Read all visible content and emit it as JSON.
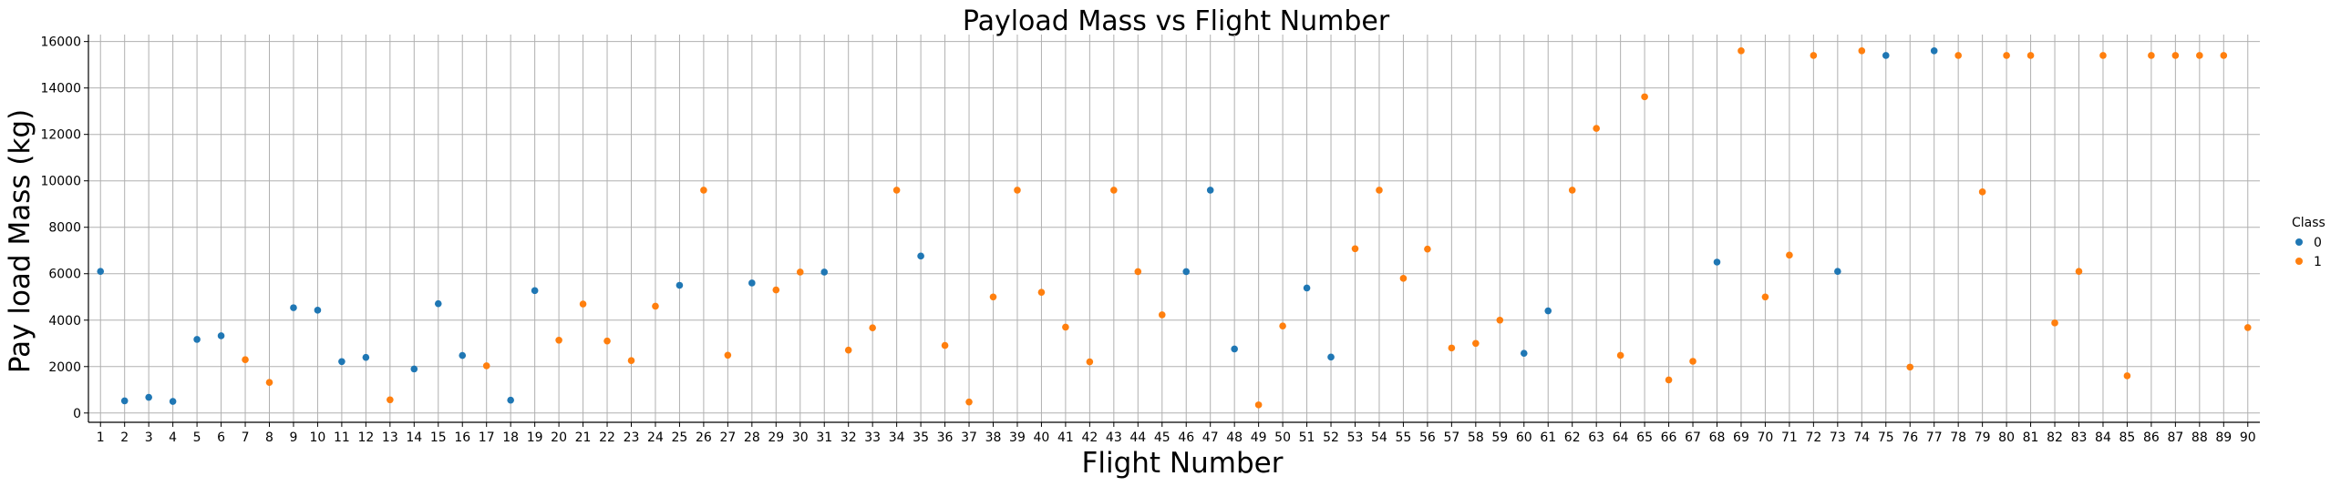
{
  "chart_data": {
    "type": "scatter",
    "title": "Payload Mass vs Flight Number",
    "xlabel": "Flight Number",
    "ylabel": "Pay load Mass (kg)",
    "x_categories": [
      1,
      2,
      3,
      4,
      5,
      6,
      7,
      8,
      9,
      10,
      11,
      12,
      13,
      14,
      15,
      16,
      17,
      18,
      19,
      20,
      21,
      22,
      23,
      24,
      25,
      26,
      27,
      28,
      29,
      30,
      31,
      32,
      33,
      34,
      35,
      36,
      37,
      38,
      39,
      40,
      41,
      42,
      43,
      44,
      45,
      46,
      47,
      48,
      49,
      50,
      51,
      52,
      53,
      54,
      55,
      56,
      57,
      58,
      59,
      60,
      61,
      62,
      63,
      64,
      65,
      66,
      67,
      68,
      69,
      70,
      71,
      72,
      73,
      74,
      75,
      76,
      77,
      78,
      79,
      80,
      81,
      82,
      83,
      84,
      85,
      86,
      87,
      88,
      89,
      90
    ],
    "ylim": [
      -400,
      16300
    ],
    "yticks": [
      0,
      2000,
      4000,
      6000,
      8000,
      10000,
      12000,
      14000,
      16000
    ],
    "grid": true,
    "legend": {
      "title": "Class",
      "placement": "right",
      "entries": [
        "0",
        "1"
      ]
    },
    "colors": {
      "class_0": "#1f77b4",
      "class_1": "#ff7f0e"
    },
    "points": [
      {
        "x": 1,
        "y": 6100,
        "class": 0
      },
      {
        "x": 2,
        "y": 525,
        "class": 0
      },
      {
        "x": 3,
        "y": 677,
        "class": 0
      },
      {
        "x": 4,
        "y": 500,
        "class": 0
      },
      {
        "x": 5,
        "y": 3170,
        "class": 0
      },
      {
        "x": 6,
        "y": 3325,
        "class": 0
      },
      {
        "x": 7,
        "y": 2296,
        "class": 1
      },
      {
        "x": 8,
        "y": 1316,
        "class": 1
      },
      {
        "x": 9,
        "y": 4535,
        "class": 0
      },
      {
        "x": 10,
        "y": 4428,
        "class": 0
      },
      {
        "x": 11,
        "y": 2216,
        "class": 0
      },
      {
        "x": 12,
        "y": 2395,
        "class": 0
      },
      {
        "x": 13,
        "y": 570,
        "class": 1
      },
      {
        "x": 14,
        "y": 1898,
        "class": 0
      },
      {
        "x": 15,
        "y": 4707,
        "class": 0
      },
      {
        "x": 16,
        "y": 2477,
        "class": 0
      },
      {
        "x": 17,
        "y": 2034,
        "class": 1
      },
      {
        "x": 18,
        "y": 553,
        "class": 0
      },
      {
        "x": 19,
        "y": 5271,
        "class": 0
      },
      {
        "x": 20,
        "y": 3136,
        "class": 1
      },
      {
        "x": 21,
        "y": 4696,
        "class": 1
      },
      {
        "x": 22,
        "y": 3100,
        "class": 1
      },
      {
        "x": 23,
        "y": 2257,
        "class": 1
      },
      {
        "x": 24,
        "y": 4600,
        "class": 1
      },
      {
        "x": 25,
        "y": 5500,
        "class": 0
      },
      {
        "x": 26,
        "y": 9600,
        "class": 1
      },
      {
        "x": 27,
        "y": 2490,
        "class": 1
      },
      {
        "x": 28,
        "y": 5600,
        "class": 0
      },
      {
        "x": 29,
        "y": 5300,
        "class": 1
      },
      {
        "x": 30,
        "y": 6070,
        "class": 1
      },
      {
        "x": 31,
        "y": 6070,
        "class": 0
      },
      {
        "x": 32,
        "y": 2708,
        "class": 1
      },
      {
        "x": 33,
        "y": 3669,
        "class": 1
      },
      {
        "x": 34,
        "y": 9600,
        "class": 1
      },
      {
        "x": 35,
        "y": 6761,
        "class": 0
      },
      {
        "x": 36,
        "y": 2910,
        "class": 1
      },
      {
        "x": 37,
        "y": 475,
        "class": 1
      },
      {
        "x": 38,
        "y": 5000,
        "class": 1
      },
      {
        "x": 39,
        "y": 9600,
        "class": 1
      },
      {
        "x": 40,
        "y": 5200,
        "class": 1
      },
      {
        "x": 41,
        "y": 3700,
        "class": 1
      },
      {
        "x": 42,
        "y": 2205,
        "class": 1
      },
      {
        "x": 43,
        "y": 9600,
        "class": 1
      },
      {
        "x": 44,
        "y": 6092,
        "class": 1
      },
      {
        "x": 45,
        "y": 4230,
        "class": 1
      },
      {
        "x": 46,
        "y": 6092,
        "class": 0
      },
      {
        "x": 47,
        "y": 9600,
        "class": 0
      },
      {
        "x": 48,
        "y": 2760,
        "class": 0
      },
      {
        "x": 49,
        "y": 350,
        "class": 1
      },
      {
        "x": 50,
        "y": 3750,
        "class": 1
      },
      {
        "x": 51,
        "y": 5383,
        "class": 0
      },
      {
        "x": 52,
        "y": 2410,
        "class": 0
      },
      {
        "x": 53,
        "y": 7076,
        "class": 1
      },
      {
        "x": 54,
        "y": 9600,
        "class": 1
      },
      {
        "x": 55,
        "y": 5800,
        "class": 1
      },
      {
        "x": 56,
        "y": 7060,
        "class": 1
      },
      {
        "x": 57,
        "y": 2800,
        "class": 1
      },
      {
        "x": 58,
        "y": 3000,
        "class": 1
      },
      {
        "x": 59,
        "y": 4000,
        "class": 1
      },
      {
        "x": 60,
        "y": 2573,
        "class": 0
      },
      {
        "x": 61,
        "y": 4400,
        "class": 0
      },
      {
        "x": 62,
        "y": 9600,
        "class": 1
      },
      {
        "x": 63,
        "y": 12259,
        "class": 1
      },
      {
        "x": 64,
        "y": 2482,
        "class": 1
      },
      {
        "x": 65,
        "y": 13620,
        "class": 1
      },
      {
        "x": 66,
        "y": 1425,
        "class": 1
      },
      {
        "x": 67,
        "y": 2227,
        "class": 1
      },
      {
        "x": 68,
        "y": 6500,
        "class": 0
      },
      {
        "x": 69,
        "y": 15600,
        "class": 1
      },
      {
        "x": 70,
        "y": 5000,
        "class": 1
      },
      {
        "x": 71,
        "y": 6800,
        "class": 1
      },
      {
        "x": 72,
        "y": 15400,
        "class": 1
      },
      {
        "x": 73,
        "y": 6100,
        "class": 0
      },
      {
        "x": 74,
        "y": 15600,
        "class": 1
      },
      {
        "x": 75,
        "y": 15400,
        "class": 0
      },
      {
        "x": 76,
        "y": 1977,
        "class": 1
      },
      {
        "x": 77,
        "y": 15600,
        "class": 0
      },
      {
        "x": 78,
        "y": 15400,
        "class": 1
      },
      {
        "x": 79,
        "y": 9525,
        "class": 1
      },
      {
        "x": 80,
        "y": 15400,
        "class": 1
      },
      {
        "x": 81,
        "y": 15400,
        "class": 1
      },
      {
        "x": 82,
        "y": 3880,
        "class": 1
      },
      {
        "x": 83,
        "y": 6100,
        "class": 1
      },
      {
        "x": 84,
        "y": 15400,
        "class": 1
      },
      {
        "x": 85,
        "y": 1600,
        "class": 1
      },
      {
        "x": 86,
        "y": 15400,
        "class": 1
      },
      {
        "x": 87,
        "y": 15400,
        "class": 1
      },
      {
        "x": 88,
        "y": 15400,
        "class": 1
      },
      {
        "x": 89,
        "y": 15400,
        "class": 1
      },
      {
        "x": 90,
        "y": 3681,
        "class": 1
      }
    ]
  }
}
